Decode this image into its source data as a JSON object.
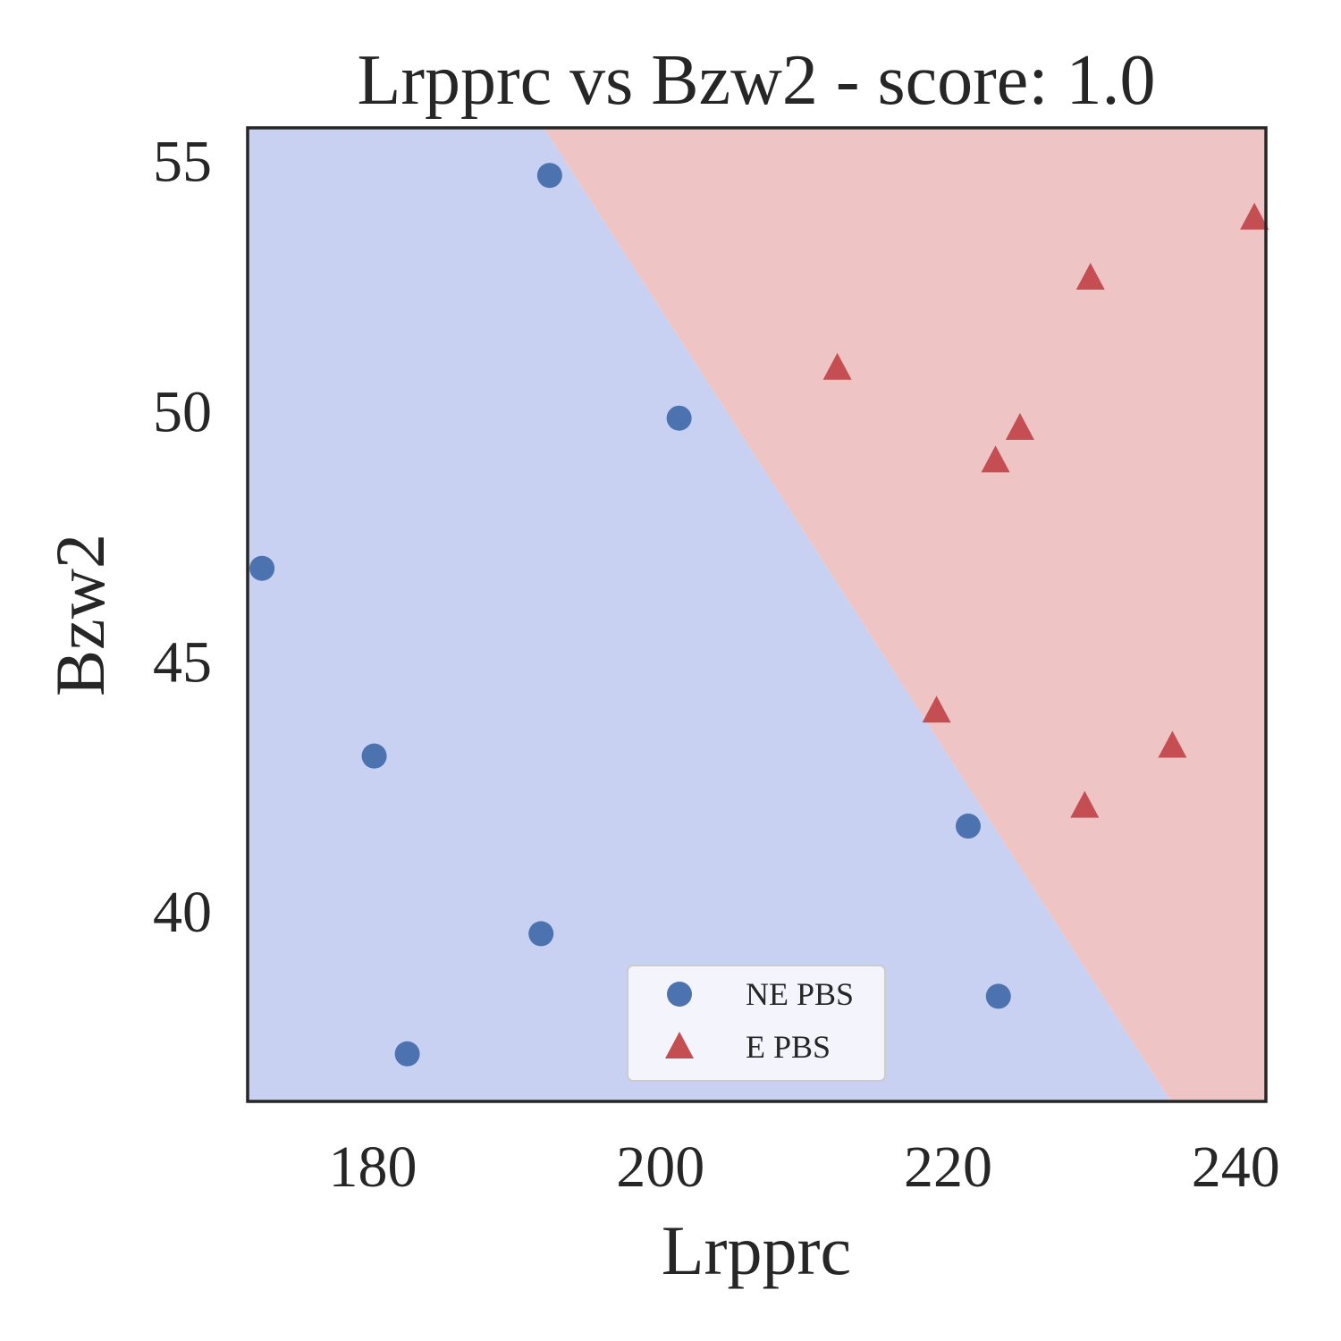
{
  "chart_data": {
    "type": "scatter",
    "title": "Lrpprc vs Bzw2 - score: 1.0",
    "xlabel": "Lrpprc",
    "ylabel": "Bzw2",
    "xlim": [
      171.3,
      242.1
    ],
    "ylim": [
      36.2,
      55.65
    ],
    "xticks": [
      180,
      200,
      220,
      240
    ],
    "yticks": [
      40,
      45,
      50,
      55
    ],
    "grid": false,
    "legend_position": "lower-center",
    "decision_boundary": {
      "points": [
        [
          191.9,
          55.65
        ],
        [
          235.5,
          36.2
        ]
      ]
    },
    "regions": {
      "left_color": "#c9d1f2",
      "right_color": "#eec4c4"
    },
    "series": [
      {
        "name": "NE PBS",
        "marker": "circle",
        "color": "#4c72b0",
        "points": [
          [
            192.3,
            54.7
          ],
          [
            201.3,
            49.85
          ],
          [
            172.3,
            46.85
          ],
          [
            180.1,
            43.1
          ],
          [
            221.4,
            41.7
          ],
          [
            191.7,
            39.55
          ],
          [
            223.5,
            38.3
          ],
          [
            182.4,
            37.15
          ]
        ]
      },
      {
        "name": "E PBS",
        "marker": "triangle",
        "color": "#c44e52",
        "points": [
          [
            241.3,
            53.85
          ],
          [
            229.9,
            52.65
          ],
          [
            212.3,
            50.85
          ],
          [
            225.0,
            49.65
          ],
          [
            223.3,
            49.0
          ],
          [
            219.2,
            44.0
          ],
          [
            235.6,
            43.3
          ],
          [
            229.5,
            42.1
          ]
        ]
      }
    ]
  }
}
